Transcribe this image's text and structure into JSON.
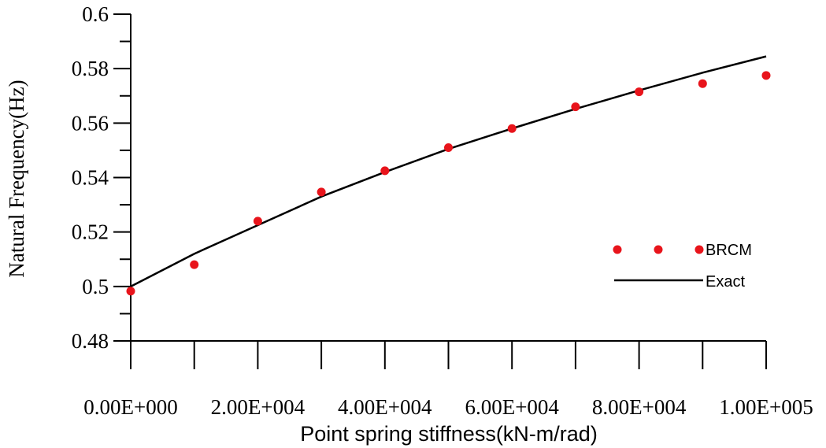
{
  "chart_data": {
    "type": "scatter",
    "xlabel": "Point spring stiffness(kN-m/rad)",
    "ylabel": "Natural Frequency(Hz)",
    "xlim": [
      0,
      100000
    ],
    "ylim": [
      0.48,
      0.6
    ],
    "x_tick_labels": [
      "0.00E+000",
      "2.00E+004",
      "4.00E+004",
      "6.00E+004",
      "8.00E+004",
      "1.00E+005"
    ],
    "x_tick_values": [
      0,
      20000,
      40000,
      60000,
      80000,
      100000
    ],
    "y_tick_labels": [
      "0.48",
      "0.5",
      "0.52",
      "0.54",
      "0.56",
      "0.58",
      "0.6"
    ],
    "y_tick_values": [
      0.48,
      0.5,
      0.52,
      0.54,
      0.56,
      0.58,
      0.6
    ],
    "grid": false,
    "legend_position": "right",
    "series": [
      {
        "name": "BRCM",
        "style": "markers",
        "color": "#e8141b",
        "x": [
          0,
          10000,
          20000,
          30000,
          40000,
          50000,
          60000,
          70000,
          80000,
          90000,
          100000
        ],
        "y": [
          0.4983,
          0.508,
          0.524,
          0.5347,
          0.5425,
          0.551,
          0.558,
          0.566,
          0.5715,
          0.5745,
          0.5775
        ]
      },
      {
        "name": "Exact",
        "style": "line",
        "color": "#000000",
        "x": [
          0,
          10000,
          20000,
          30000,
          40000,
          50000,
          60000,
          70000,
          80000,
          90000,
          100000
        ],
        "y": [
          0.5,
          0.512,
          0.5225,
          0.533,
          0.542,
          0.5505,
          0.558,
          0.5652,
          0.572,
          0.5785,
          0.5845
        ]
      }
    ]
  }
}
